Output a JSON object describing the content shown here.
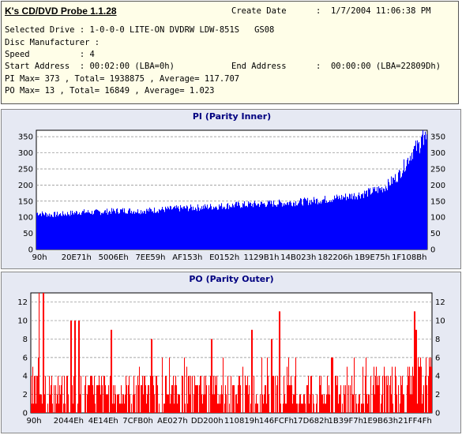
{
  "app": {
    "title": "K's CD/DVD Probe 1.1.28"
  },
  "info": {
    "create_date_label": "Create Date",
    "create_date_value": ":  1/7/2004 11:06:38 PM",
    "selected_drive": "Selected Drive : 1-0-0-0 LITE-ON DVDRW LDW-851S   GS08",
    "disc_manufacturer": "Disc Manufacturer :",
    "speed": "Speed          : 4",
    "start_address": "Start Address  : 00:02:00 (LBA=0h)",
    "end_address_label": "End Address",
    "end_address_value": ":  00:00:00 (LBA=22809Dh)",
    "pi_stats": "PI Max= 373 , Total= 1938875 , Average= 117.707",
    "po_stats": "PO Max= 13 , Total= 16849 , Average= 1.023"
  },
  "chart_data": [
    {
      "type": "bar",
      "title": "PI (Parity Inner)",
      "bar_color": "#0000ff",
      "background": "#ffffff",
      "grid": true,
      "ylim": [
        0,
        370
      ],
      "yticks": [
        0,
        50,
        100,
        150,
        200,
        250,
        300,
        350
      ],
      "xticks": [
        "90h",
        "20E71h",
        "5006Eh",
        "7EE59h",
        "AF153h",
        "E0152h",
        "1129B1h",
        "14B023h",
        "182206h",
        "1B9E75h",
        "1F108Bh"
      ],
      "x_range": [
        "0h",
        "22809Dh"
      ],
      "series": [
        {
          "values": [
            118,
            112,
            115,
            121,
            120,
            123,
            126,
            124,
            127,
            130,
            133,
            135,
            138,
            141,
            144,
            146,
            148,
            150,
            153,
            157,
            162,
            168,
            175,
            185,
            200,
            240,
            320,
            360
          ],
          "max": 373
        }
      ]
    },
    {
      "type": "bar",
      "title": "PO (Parity Outer)",
      "bar_color": "#ff0000",
      "background": "#ffffff",
      "grid": true,
      "ylim": [
        0,
        13
      ],
      "yticks": [
        0,
        2,
        4,
        6,
        8,
        10,
        12
      ],
      "xticks": [
        "90h",
        "2044Eh",
        "4E14Eh",
        "7CFB0h",
        "AE027h",
        "DD200h",
        "110819h",
        "146FCFh",
        "17D682h",
        "1B39F7h",
        "1E9B63h",
        "21FF4Fh"
      ],
      "x_range": [
        "0h",
        "22809Dh"
      ],
      "series": [
        {
          "baseline_values": [
            3,
            2,
            2,
            2,
            2,
            2,
            2,
            2,
            2,
            2,
            2,
            2,
            2,
            2,
            2,
            2,
            2,
            2,
            2,
            2,
            2,
            2,
            2,
            3,
            3,
            3,
            4,
            6
          ],
          "peaks": [
            13,
            10,
            10,
            9,
            8,
            9,
            8,
            6,
            11,
            10,
            8,
            9,
            11
          ],
          "max": 13
        }
      ]
    }
  ]
}
